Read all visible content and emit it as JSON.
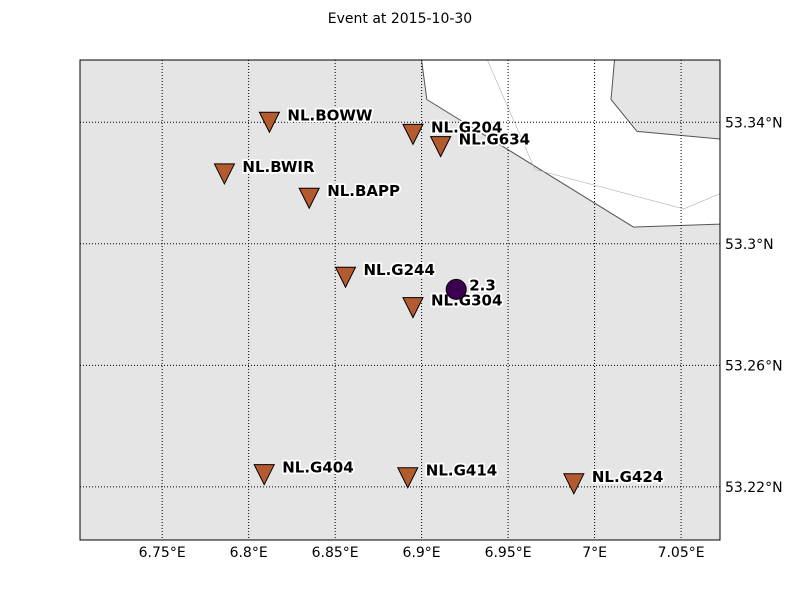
{
  "title": "Event at 2015-10-30",
  "map": {
    "lon_range": [
      6.7025,
      7.0725
    ],
    "lat_range": [
      53.2025,
      53.3605
    ],
    "grid": true,
    "x_ticks": [
      {
        "value": 6.75,
        "label": "6.75°E"
      },
      {
        "value": 6.8,
        "label": "6.8°E"
      },
      {
        "value": 6.85,
        "label": "6.85°E"
      },
      {
        "value": 6.9,
        "label": "6.9°E"
      },
      {
        "value": 6.95,
        "label": "6.95°E"
      },
      {
        "value": 7.0,
        "label": "7°E"
      },
      {
        "value": 7.05,
        "label": "7.05°E"
      }
    ],
    "y_ticks": [
      {
        "value": 53.22,
        "label": "53.22°N"
      },
      {
        "value": 53.26,
        "label": "53.26°N"
      },
      {
        "value": 53.3,
        "label": "53.3°N"
      },
      {
        "value": 53.34,
        "label": "53.34°N"
      }
    ],
    "colors": {
      "land": "#e5e5e5",
      "water": "#ffffff",
      "coastline": "#555555",
      "station_fill": "#b35a2e",
      "event_fill": "#3c0050"
    }
  },
  "stations": [
    {
      "name": "NL.BOWW",
      "lon": 6.812,
      "lat": 53.34
    },
    {
      "name": "NL.G204",
      "lon": 6.895,
      "lat": 53.336
    },
    {
      "name": "NL.G634",
      "lon": 6.911,
      "lat": 53.332
    },
    {
      "name": "NL.BWIR",
      "lon": 6.786,
      "lat": 53.323
    },
    {
      "name": "NL.BAPP",
      "lon": 6.835,
      "lat": 53.315
    },
    {
      "name": "NL.G244",
      "lon": 6.856,
      "lat": 53.289
    },
    {
      "name": "NL.G304",
      "lon": 6.895,
      "lat": 53.279
    },
    {
      "name": "NL.G404",
      "lon": 6.809,
      "lat": 53.224
    },
    {
      "name": "NL.G414",
      "lon": 6.892,
      "lat": 53.223
    },
    {
      "name": "NL.G424",
      "lon": 6.988,
      "lat": 53.221
    }
  ],
  "event": {
    "label": "2.3",
    "lon": 6.92,
    "lat": 53.285
  },
  "coastline": {
    "water_polygon": [
      [
        6.9,
        53.3605
      ],
      [
        7.0725,
        53.3605
      ],
      [
        7.0725,
        53.3065
      ],
      [
        7.0225,
        53.3055
      ],
      [
        6.903,
        53.3475
      ],
      [
        6.9,
        53.3605
      ]
    ],
    "inner_land": [
      [
        7.0115,
        53.3605
      ],
      [
        7.0095,
        53.3475
      ],
      [
        7.0245,
        53.337
      ],
      [
        7.0725,
        53.3345
      ],
      [
        7.0725,
        53.3605
      ],
      [
        7.0115,
        53.3605
      ]
    ],
    "coast_line": [
      [
        6.9,
        53.3605
      ],
      [
        6.903,
        53.3475
      ],
      [
        7.0225,
        53.3055
      ],
      [
        7.0725,
        53.3065
      ]
    ],
    "inner_line": [
      [
        7.0115,
        53.3605
      ],
      [
        7.0095,
        53.3475
      ],
      [
        7.0245,
        53.337
      ],
      [
        7.0725,
        53.3345
      ]
    ],
    "channel_line": [
      [
        6.938,
        53.3605
      ],
      [
        6.9655,
        53.3245
      ],
      [
        7.0515,
        53.3115
      ],
      [
        7.0725,
        53.3165
      ]
    ]
  }
}
